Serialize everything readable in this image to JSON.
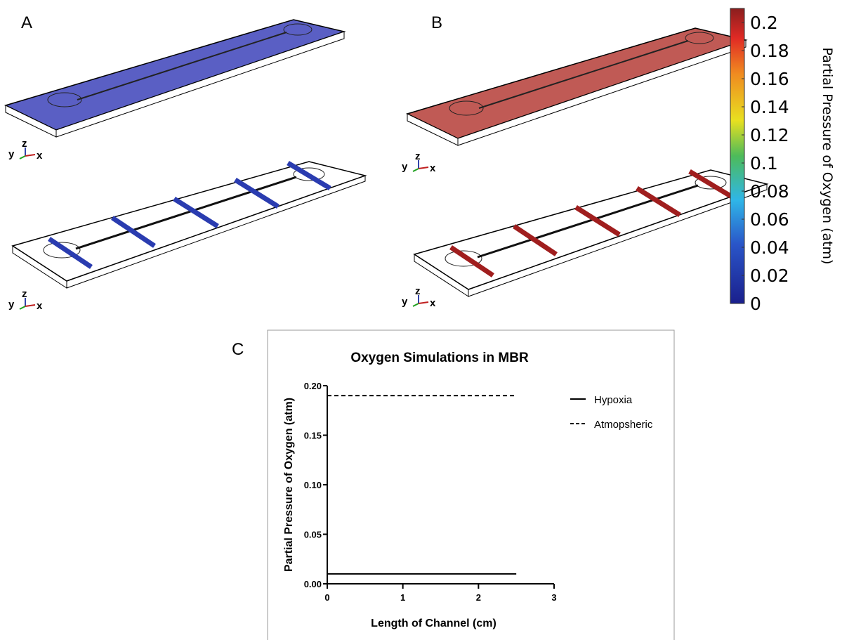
{
  "panels": {
    "a": "A",
    "b": "B",
    "c": "C",
    "axes_labels": {
      "x": "x",
      "y": "y",
      "z": "z"
    }
  },
  "colorbar": {
    "label": "Partial Pressure of Oxygen (atm)",
    "range": [
      0,
      0.21
    ],
    "ticks": [
      0,
      0.02,
      0.04,
      0.06,
      0.08,
      0.1,
      0.12,
      0.14,
      0.16,
      0.18,
      0.2
    ]
  },
  "chart_data": {
    "type": "line",
    "title": "Oxygen Simulations in MBR",
    "x_label": "Length of Channel (cm)",
    "y_label": "Partial Pressure of Oxygen (atm)",
    "x": [
      0,
      2.5
    ],
    "series": [
      {
        "name": "Hypoxia",
        "color": "#000000",
        "dashed": false,
        "values": [
          0.01,
          0.01
        ]
      },
      {
        "name": "Atmopsheric",
        "color": "#000000",
        "dashed": true,
        "values": [
          0.19,
          0.19
        ]
      }
    ],
    "xlim": [
      0,
      3
    ],
    "xticks": [
      0,
      1,
      2,
      3
    ],
    "ylim": [
      0,
      0.2
    ],
    "yticks": [
      {
        "value": 0,
        "label": "0.00"
      },
      {
        "value": 0.05,
        "label": "0.05"
      },
      {
        "value": 0.1,
        "label": "0.10"
      },
      {
        "value": 0.15,
        "label": "0.15"
      },
      {
        "value": 0.2,
        "label": "0.20"
      }
    ],
    "grid": false
  }
}
